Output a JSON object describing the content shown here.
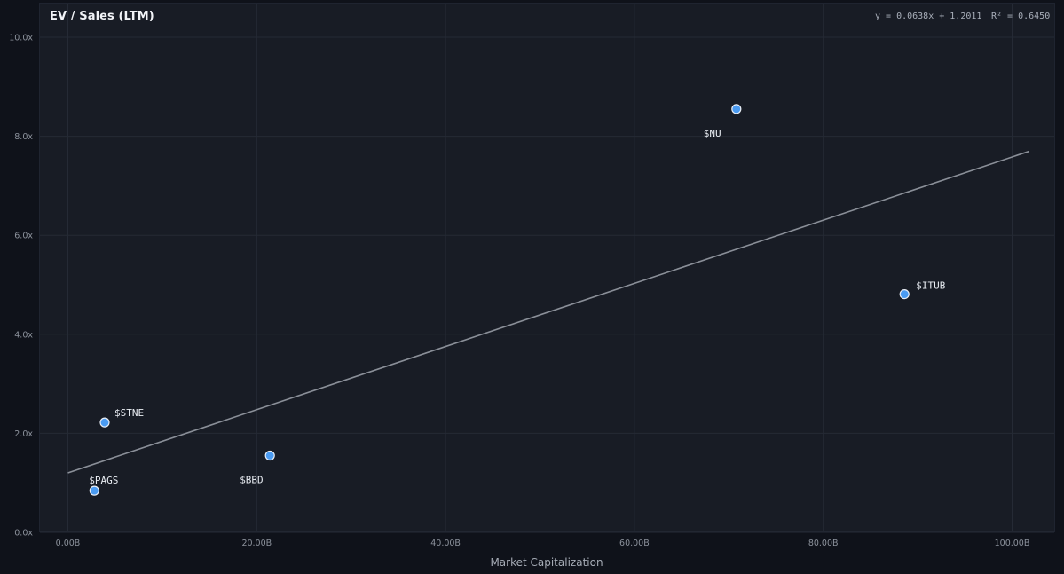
{
  "chart_data": {
    "type": "scatter",
    "title": "EV / Sales (LTM)",
    "xlabel": "Market Capitalization",
    "ylabel": "",
    "xlim": [
      -3,
      104
    ],
    "ylim": [
      0,
      10.3
    ],
    "x_ticks": [
      0,
      20,
      40,
      60,
      80,
      100
    ],
    "x_tick_labels": [
      "0.00B",
      "20.00B",
      "40.00B",
      "60.00B",
      "80.00B",
      "100.00B"
    ],
    "y_ticks": [
      0,
      2,
      4,
      6,
      8,
      10
    ],
    "y_tick_labels": [
      "0.0x",
      "2.0x",
      "4.0x",
      "6.0x",
      "8.0x",
      "10.0x"
    ],
    "grid": true,
    "point_color": "#4a9bf2",
    "trendline_color": "#8a8f98",
    "points": [
      {
        "label": "$PAGS",
        "x": 2.8,
        "y": 0.84
      },
      {
        "label": "$STNE",
        "x": 3.9,
        "y": 2.22
      },
      {
        "label": "$BBD",
        "x": 21.4,
        "y": 1.55
      },
      {
        "label": "$NU",
        "x": 70.8,
        "y": 8.55
      },
      {
        "label": "$ITUB",
        "x": 88.6,
        "y": 4.81
      }
    ],
    "trendline": {
      "slope": 0.0638,
      "intercept": 1.2011,
      "x_range": [
        0,
        101.8
      ]
    },
    "equation_text": "y = 0.0638x + 1.2011",
    "r2_text": "R² = 0.6450"
  }
}
